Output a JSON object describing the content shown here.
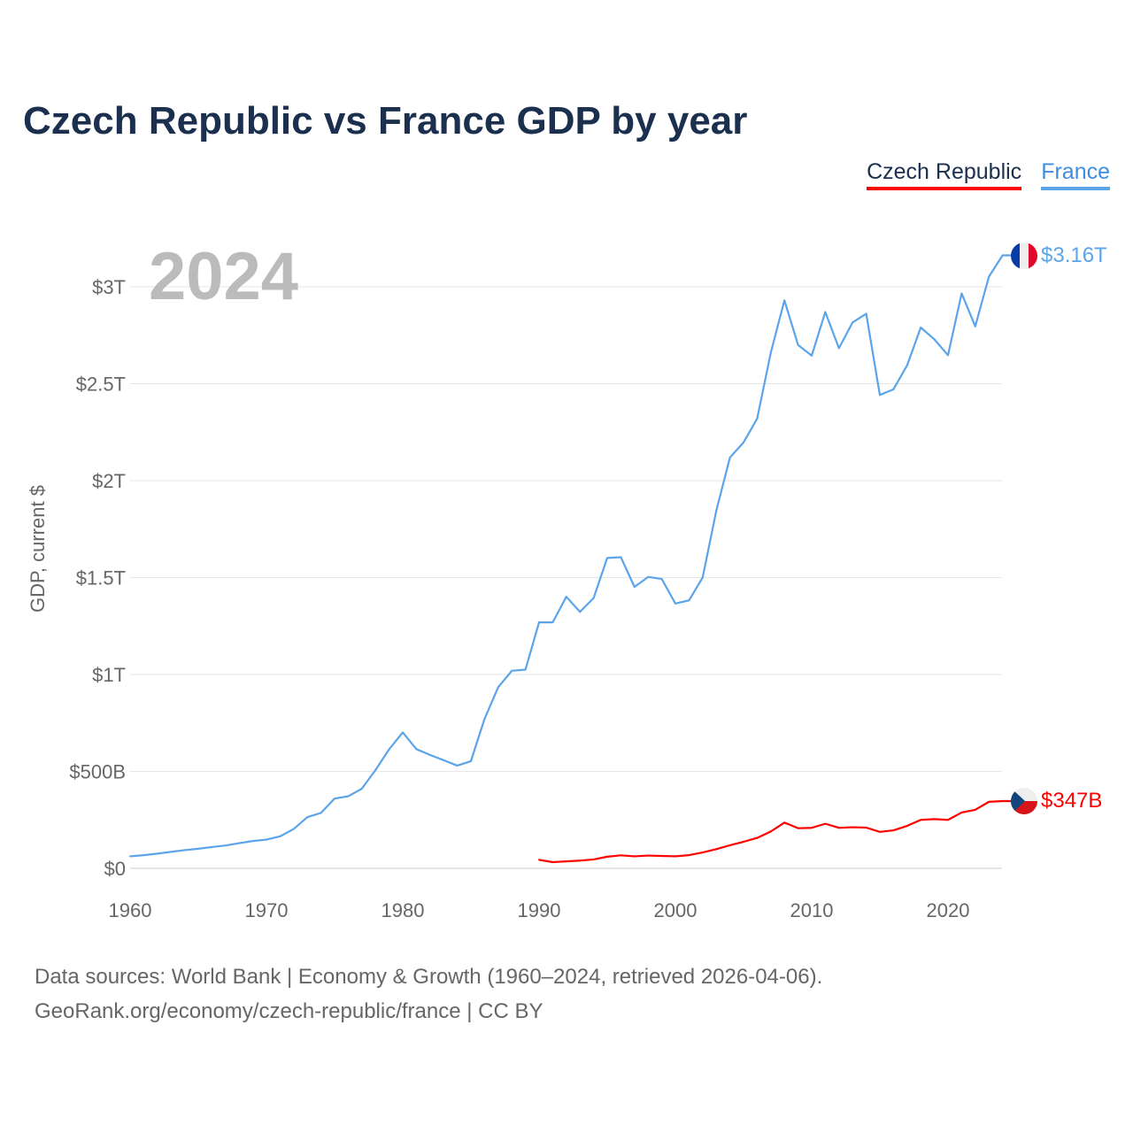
{
  "title": "Czech Republic vs France GDP by year",
  "legend": [
    {
      "name": "Czech Republic",
      "color": "#ff0000"
    },
    {
      "name": "France",
      "color": "#5ba4ea"
    }
  ],
  "year_label": "2024",
  "end_labels": {
    "france": "$3.16T",
    "czech": "$347B"
  },
  "footer": [
    "Data sources: World Bank | Economy & Growth (1960–2024, retrieved 2026-04-06).",
    "GeoRank.org/economy/czech-republic/france | CC BY"
  ],
  "chart_data": {
    "type": "line",
    "title": "Czech Republic vs France GDP by year",
    "ylabel": "GDP, current $",
    "xlabel": "",
    "xlim": [
      1960,
      2024
    ],
    "ylim": [
      0,
      3000
    ],
    "y_unit": "billions USD",
    "x_ticks": [
      1960,
      1970,
      1980,
      1990,
      2000,
      2010,
      2020
    ],
    "x_tick_labels": [
      "1960",
      "1970",
      "1980",
      "1990",
      "2000",
      "2010",
      "2020"
    ],
    "y_ticks": [
      0,
      500,
      1000,
      1500,
      2000,
      2500,
      3000
    ],
    "y_tick_labels": [
      "$0",
      "$500B",
      "$1T",
      "$1.5T",
      "$2T",
      "$2.5T",
      "$3T"
    ],
    "grid": true,
    "legend_placement": "top-right",
    "series": [
      {
        "name": "France",
        "color": "#5ba4ea",
        "start": 1960,
        "values": [
          62,
          68,
          76,
          85,
          94,
          101,
          110,
          118,
          130,
          141,
          148,
          165,
          203,
          264,
          286,
          360,
          372,
          411,
          507,
          614,
          701,
          615,
          585,
          558,
          530,
          553,
          771,
          934,
          1019,
          1025,
          1269,
          1269,
          1401,
          1323,
          1394,
          1601,
          1605,
          1452,
          1503,
          1493,
          1366,
          1382,
          1500,
          1844,
          2119,
          2197,
          2320,
          2660,
          2930,
          2700,
          2645,
          2870,
          2683,
          2816,
          2861,
          2442,
          2471,
          2595,
          2790,
          2729,
          2647,
          2966,
          2796,
          3052,
          3162
        ]
      },
      {
        "name": "Czech Republic",
        "color": "#ff0000",
        "start": 1990,
        "values": [
          44,
          32,
          36,
          40,
          46,
          60,
          67,
          62,
          66,
          64,
          62,
          68,
          82,
          99,
          119,
          137,
          157,
          190,
          236,
          207,
          209,
          230,
          209,
          212,
          210,
          188,
          196,
          219,
          250,
          254,
          250,
          288,
          302,
          343,
          347
        ]
      }
    ]
  }
}
